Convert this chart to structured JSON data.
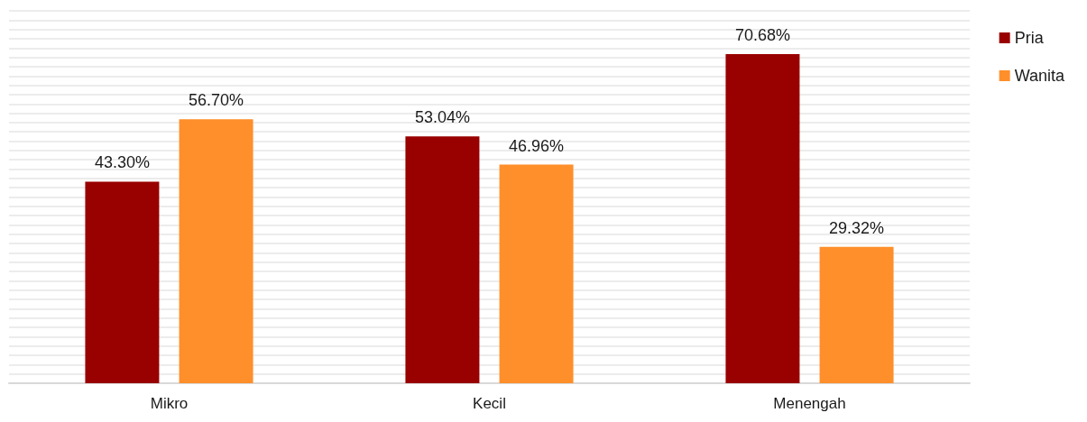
{
  "chart_data": {
    "type": "bar",
    "categories": [
      "Mikro",
      "Kecil",
      "Menengah"
    ],
    "series": [
      {
        "name": "Pria",
        "color": "#990000",
        "values": [
          43.3,
          53.04,
          70.68
        ],
        "value_labels": [
          "43.30%",
          "53.04%",
          "70.68%"
        ]
      },
      {
        "name": "Wanita",
        "color": "#ff8f2b",
        "values": [
          56.7,
          46.96,
          29.32
        ],
        "value_labels": [
          "56.70%",
          "46.96%",
          "29.32%"
        ]
      }
    ],
    "ylim": [
      0,
      80
    ],
    "yticks": [
      {
        "value": 0,
        "label": null
      },
      {
        "value": 2,
        "label": null
      },
      {
        "value": 4,
        "label": null
      },
      {
        "value": 6,
        "label": null
      },
      {
        "value": 8,
        "label": null
      },
      {
        "value": 10,
        "label": null
      },
      {
        "value": 12,
        "label": null
      },
      {
        "value": 14,
        "label": null
      },
      {
        "value": 16,
        "label": null
      },
      {
        "value": 18,
        "label": null
      },
      {
        "value": 20,
        "label": null
      },
      {
        "value": 22,
        "label": null
      },
      {
        "value": 24,
        "label": null
      },
      {
        "value": 26,
        "label": null
      },
      {
        "value": 28,
        "label": null
      },
      {
        "value": 30,
        "label": null
      },
      {
        "value": 32,
        "label": null
      },
      {
        "value": 34,
        "label": null
      },
      {
        "value": 36,
        "label": null
      },
      {
        "value": 38,
        "label": null
      },
      {
        "value": 40,
        "label": null
      },
      {
        "value": 42,
        "label": null
      },
      {
        "value": 44,
        "label": null
      },
      {
        "value": 46,
        "label": null
      },
      {
        "value": 48,
        "label": null
      },
      {
        "value": 50,
        "label": null
      },
      {
        "value": 52,
        "label": null
      },
      {
        "value": 54,
        "label": null
      },
      {
        "value": 56,
        "label": null
      },
      {
        "value": 58,
        "label": null
      },
      {
        "value": 60,
        "label": null
      },
      {
        "value": 62,
        "label": null
      },
      {
        "value": 64,
        "label": null
      },
      {
        "value": 66,
        "label": null
      },
      {
        "value": 68,
        "label": null
      },
      {
        "value": 70,
        "label": null
      },
      {
        "value": 72,
        "label": null
      },
      {
        "value": 74,
        "label": null
      },
      {
        "value": 76,
        "label": null
      },
      {
        "value": 78,
        "label": null
      },
      {
        "value": 80,
        "label": null
      }
    ],
    "grid": "y",
    "legend": "top right",
    "tick_labels": "x"
  }
}
